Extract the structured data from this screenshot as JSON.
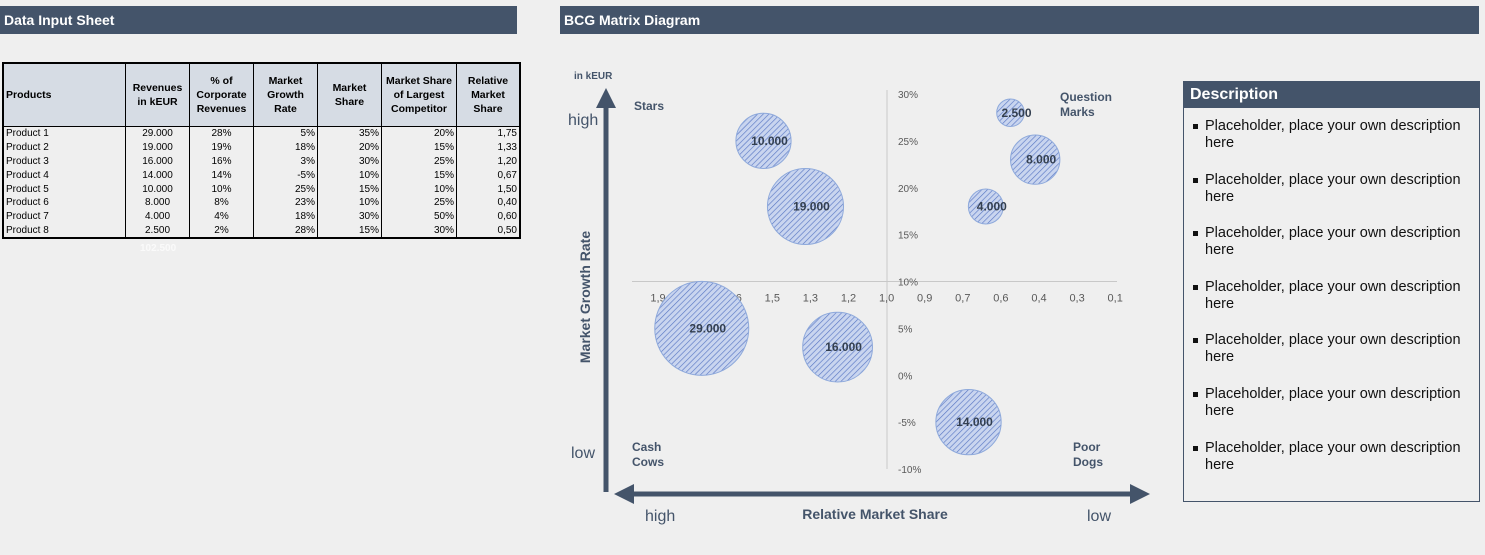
{
  "left_panel": {
    "title": "Data Input Sheet",
    "table": {
      "headers": [
        "Products",
        "Revenues in kEUR",
        "% of Corporate Revenues",
        "Market Growth Rate",
        "Market Share",
        "Market Share of Largest Competitor",
        "Relative Market Share"
      ],
      "rows": [
        [
          "Product 1",
          "29.000",
          "28%",
          "5%",
          "35%",
          "20%",
          "1,75"
        ],
        [
          "Product 2",
          "19.000",
          "19%",
          "18%",
          "20%",
          "15%",
          "1,33"
        ],
        [
          "Product 3",
          "16.000",
          "16%",
          "3%",
          "30%",
          "25%",
          "1,20"
        ],
        [
          "Product 4",
          "14.000",
          "14%",
          "-5%",
          "10%",
          "15%",
          "0,67"
        ],
        [
          "Product 5",
          "10.000",
          "10%",
          "25%",
          "15%",
          "10%",
          "1,50"
        ],
        [
          "Product 6",
          "8.000",
          "8%",
          "23%",
          "10%",
          "25%",
          "0,40"
        ],
        [
          "Product 7",
          "4.000",
          "4%",
          "18%",
          "30%",
          "50%",
          "0,60"
        ],
        [
          "Product 8",
          "2.500",
          "2%",
          "28%",
          "15%",
          "30%",
          "0,50"
        ]
      ],
      "total": "102.500"
    }
  },
  "right_panel": {
    "title": "BCG Matrix Diagram"
  },
  "description": {
    "title": "Description",
    "items": [
      "Placeholder, place your own description here",
      "Placeholder, place your own description here",
      "Placeholder, place your own description here",
      "Placeholder, place your own description here",
      "Placeholder, place your own description here",
      "Placeholder, place your own description here",
      "Placeholder, place your own description here"
    ]
  },
  "chart_data": {
    "type": "bubble",
    "unit_label": "in kEUR",
    "ylabel": "Market Growth Rate",
    "xlabel": "Relative Market Share",
    "y_high": "high",
    "y_low": "low",
    "x_high": "high",
    "x_low": "low",
    "quadrants": {
      "top_left": "Stars",
      "top_right": "Question Marks",
      "bottom_left": "Cash Cows",
      "bottom_right": "Poor Dogs"
    },
    "xlim": [
      2.0,
      0.0
    ],
    "x_reversed": true,
    "x_ticks": [
      "1,9",
      "1,8",
      "1,6",
      "1,5",
      "1,3",
      "1,2",
      "1,0",
      "0,9",
      "0,7",
      "0,6",
      "0,4",
      "0,3",
      "0,1"
    ],
    "ylim": [
      -0.1,
      0.3
    ],
    "y_ticks": [
      "30%",
      "25%",
      "20%",
      "15%",
      "10%",
      "5%",
      "0%",
      "-5%",
      "-10%"
    ],
    "x_axis_crosses_y": 0.1,
    "y_axis_crosses_x": 1.0,
    "bubble_color": "#8ea9db",
    "series": [
      {
        "x": 1.75,
        "y": 0.05,
        "size": 29000,
        "label": "29.000"
      },
      {
        "x": 1.33,
        "y": 0.18,
        "size": 19000,
        "label": "19.000"
      },
      {
        "x": 1.2,
        "y": 0.03,
        "size": 16000,
        "label": "16.000"
      },
      {
        "x": 0.67,
        "y": -0.05,
        "size": 14000,
        "label": "14.000"
      },
      {
        "x": 1.5,
        "y": 0.25,
        "size": 10000,
        "label": "10.000"
      },
      {
        "x": 0.4,
        "y": 0.23,
        "size": 8000,
        "label": "8.000"
      },
      {
        "x": 0.6,
        "y": 0.18,
        "size": 4000,
        "label": "4.000"
      },
      {
        "x": 0.5,
        "y": 0.28,
        "size": 2500,
        "label": "2.500"
      }
    ]
  }
}
